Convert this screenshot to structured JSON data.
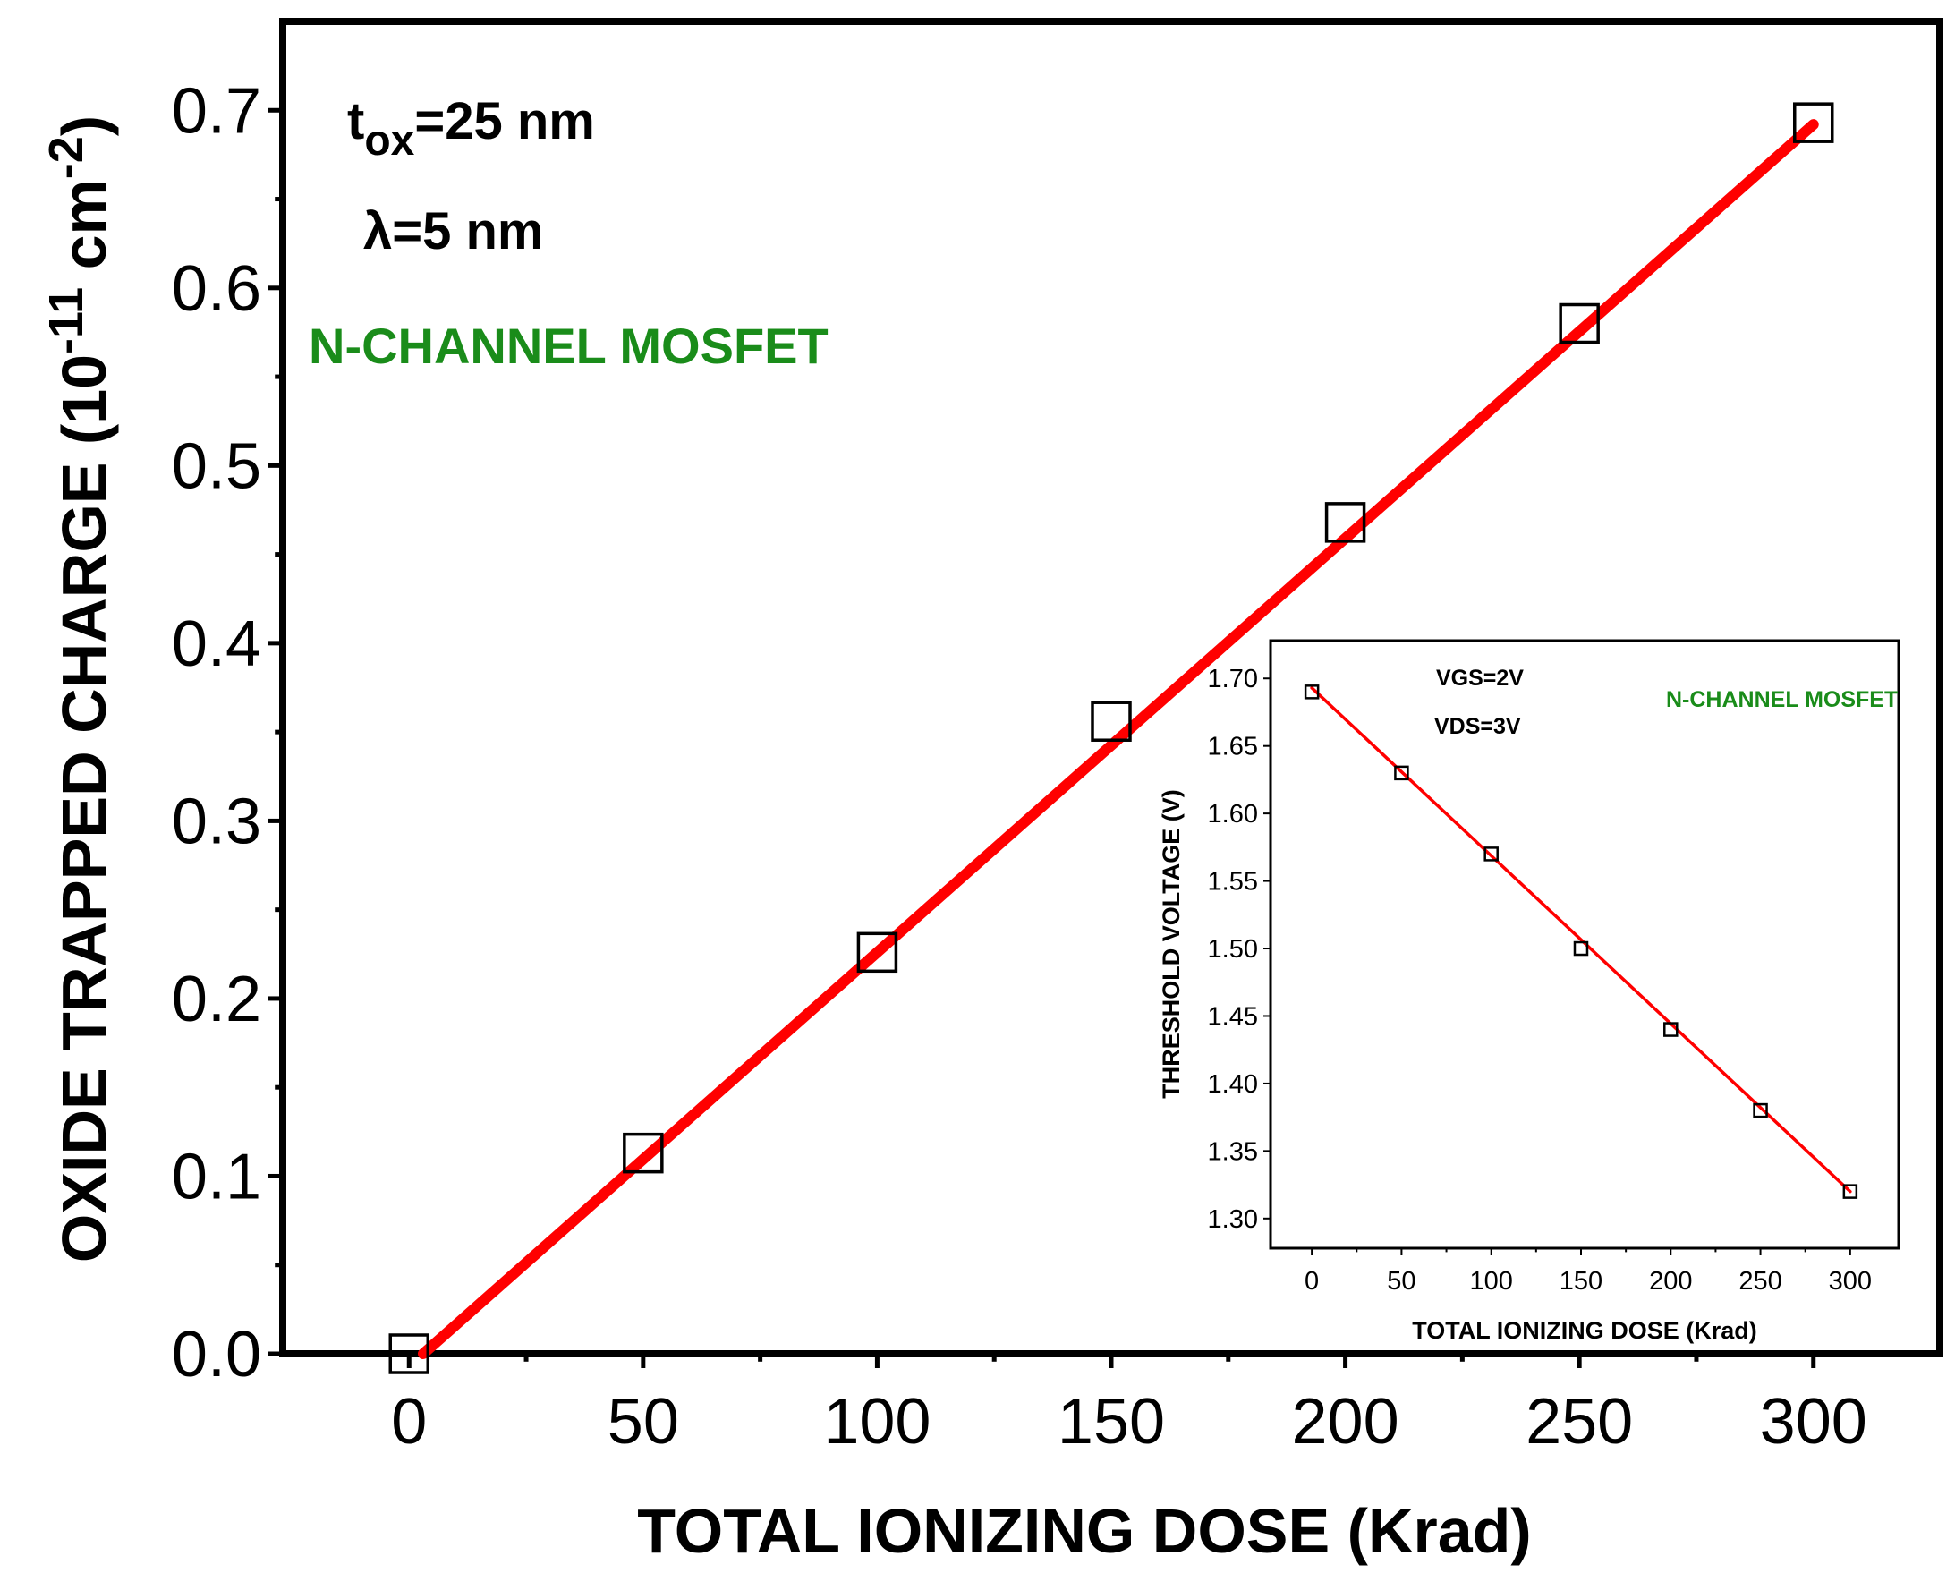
{
  "chart_data": [
    {
      "type": "scatter",
      "name": "main",
      "title": "",
      "xlabel": "TOTAL IONIZING DOSE (Krad)",
      "ylabel": {
        "prefix": "OXIDE TRAPPED CHARGE (10",
        "exponent": "-11",
        "unit": " cm",
        "unit_exp": "-2",
        "suffix": ")"
      },
      "xlim": [
        -27,
        327
      ],
      "ylim": [
        0,
        0.75
      ],
      "x_ticks": [
        0,
        50,
        100,
        150,
        200,
        250,
        300
      ],
      "x_tick_labels": [
        "0",
        "50",
        "100",
        "150",
        "200",
        "250",
        "300"
      ],
      "y_ticks": [
        0.0,
        0.1,
        0.2,
        0.3,
        0.4,
        0.5,
        0.6,
        0.7
      ],
      "y_tick_labels": [
        "0.0",
        "0.1",
        "0.2",
        "0.3",
        "0.4",
        "0.5",
        "0.6",
        "0.7"
      ],
      "series": [
        {
          "name": "data",
          "marker": "open-square",
          "x": [
            0,
            50,
            100,
            150,
            200,
            250,
            300
          ],
          "y": [
            0.0,
            0.113,
            0.226,
            0.356,
            0.468,
            0.58,
            0.693
          ]
        }
      ],
      "fit_line": {
        "color": "#ff0000",
        "x": [
          3,
          300
        ],
        "y": [
          0.0,
          0.692
        ]
      },
      "annotations": {
        "tox": {
          "base": "t",
          "sub": "ox",
          "rest": "=25 nm"
        },
        "lambda": "λ=5 nm",
        "device": "N-CHANNEL MOSFET"
      },
      "colors": {
        "fit": "#ff0000",
        "device_label": "#1a8c1a",
        "marker": "#000000"
      }
    },
    {
      "type": "scatter",
      "name": "inset",
      "title": "",
      "xlabel": "TOTAL IONIZING DOSE (Krad)",
      "ylabel": "THRESHOLD VOLTAGE (V)",
      "xlim": [
        -23,
        327
      ],
      "ylim": [
        1.278,
        1.728
      ],
      "x_ticks": [
        0,
        50,
        100,
        150,
        200,
        250,
        300
      ],
      "x_tick_labels": [
        "0",
        "50",
        "100",
        "150",
        "200",
        "250",
        "300"
      ],
      "y_ticks": [
        1.3,
        1.35,
        1.4,
        1.45,
        1.5,
        1.55,
        1.6,
        1.65,
        1.7
      ],
      "y_tick_labels": [
        "1.30",
        "1.35",
        "1.40",
        "1.45",
        "1.50",
        "1.55",
        "1.60",
        "1.65",
        "1.70"
      ],
      "series": [
        {
          "name": "data",
          "marker": "open-square",
          "x": [
            0,
            50,
            100,
            150,
            200,
            250,
            300
          ],
          "y": [
            1.69,
            1.63,
            1.57,
            1.5,
            1.44,
            1.38,
            1.32
          ]
        }
      ],
      "fit_line": {
        "color": "#ff0000",
        "x": [
          0,
          300
        ],
        "y": [
          1.693,
          1.32
        ]
      },
      "annotations": {
        "vgs": "VGS=2V",
        "vds": "VDS=3V",
        "device": "N-CHANNEL MOSFET"
      },
      "colors": {
        "fit": "#ff0000",
        "device_label": "#1a8c1a",
        "marker": "#000000"
      }
    }
  ]
}
